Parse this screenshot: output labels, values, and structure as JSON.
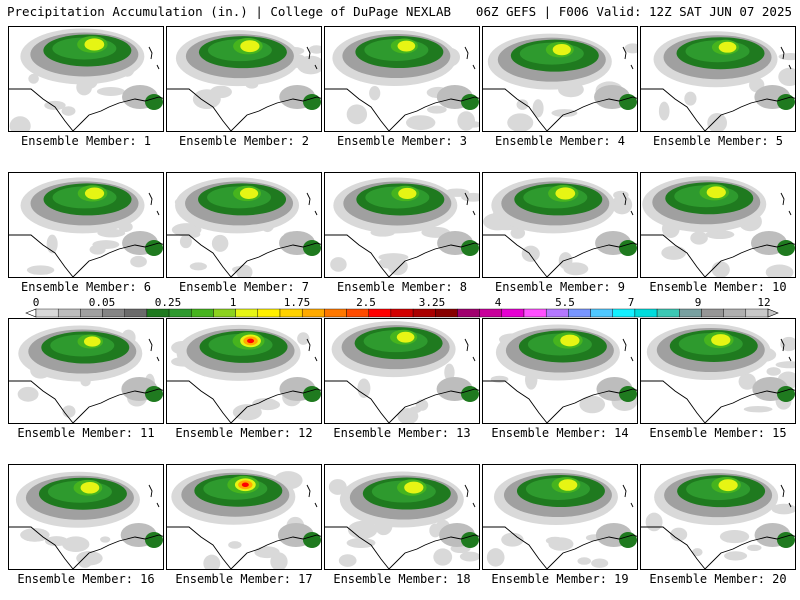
{
  "header": {
    "left": "Precipitation Accumulation (in.) | College of DuPage NEXLAB",
    "right": "06Z GEFS | F006 Valid: 12Z SAT JUN 07 2025"
  },
  "legend": {
    "tick_labels": [
      "0",
      "0.05",
      "0.25",
      "1",
      "1.75",
      "2.5",
      "3.25",
      "4",
      "5.5",
      "7",
      "9",
      "12"
    ],
    "colors": [
      "#d9d9d9",
      "#bdbdbd",
      "#a0a0a0",
      "#858585",
      "#6b6b6b",
      "#1f7a1f",
      "#2e9a2e",
      "#46b41e",
      "#8cd21e",
      "#e6f514",
      "#fff000",
      "#ffd200",
      "#ffaa00",
      "#ff7800",
      "#ff4b00",
      "#ff0000",
      "#d20000",
      "#aa0000",
      "#870000",
      "#a0006e",
      "#c8009b",
      "#e600d2",
      "#ff50ff",
      "#b478ff",
      "#7896ff",
      "#50c8ff",
      "#14f0ff",
      "#00dcdc",
      "#3cc8b4",
      "#78a0a0",
      "#969696",
      "#afafaf",
      "#c8c8c8"
    ]
  },
  "panels": [
    {
      "label": "Ensemble Member: 1",
      "intensity": 0.9
    },
    {
      "label": "Ensemble Member: 2",
      "intensity": 0.85
    },
    {
      "label": "Ensemble Member: 3",
      "intensity": 0.7
    },
    {
      "label": "Ensemble Member: 4",
      "intensity": 0.75
    },
    {
      "label": "Ensemble Member: 5",
      "intensity": 0.7
    },
    {
      "label": "Ensemble Member: 6",
      "intensity": 0.85
    },
    {
      "label": "Ensemble Member: 7",
      "intensity": 0.75
    },
    {
      "label": "Ensemble Member: 8",
      "intensity": 0.75
    },
    {
      "label": "Ensemble Member: 9",
      "intensity": 0.9
    },
    {
      "label": "Ensemble Member: 10",
      "intensity": 0.85
    },
    {
      "label": "Ensemble Member: 11",
      "intensity": 0.6
    },
    {
      "label": "Ensemble Member: 12",
      "intensity": 1.0
    },
    {
      "label": "Ensemble Member: 13",
      "intensity": 0.7
    },
    {
      "label": "Ensemble Member: 14",
      "intensity": 0.85
    },
    {
      "label": "Ensemble Member: 15",
      "intensity": 0.85
    },
    {
      "label": "Ensemble Member: 16",
      "intensity": 0.8
    },
    {
      "label": "Ensemble Member: 17",
      "intensity": 1.0
    },
    {
      "label": "Ensemble Member: 18",
      "intensity": 0.85
    },
    {
      "label": "Ensemble Member: 19",
      "intensity": 0.8
    },
    {
      "label": "Ensemble Member: 20",
      "intensity": 0.85
    }
  ]
}
